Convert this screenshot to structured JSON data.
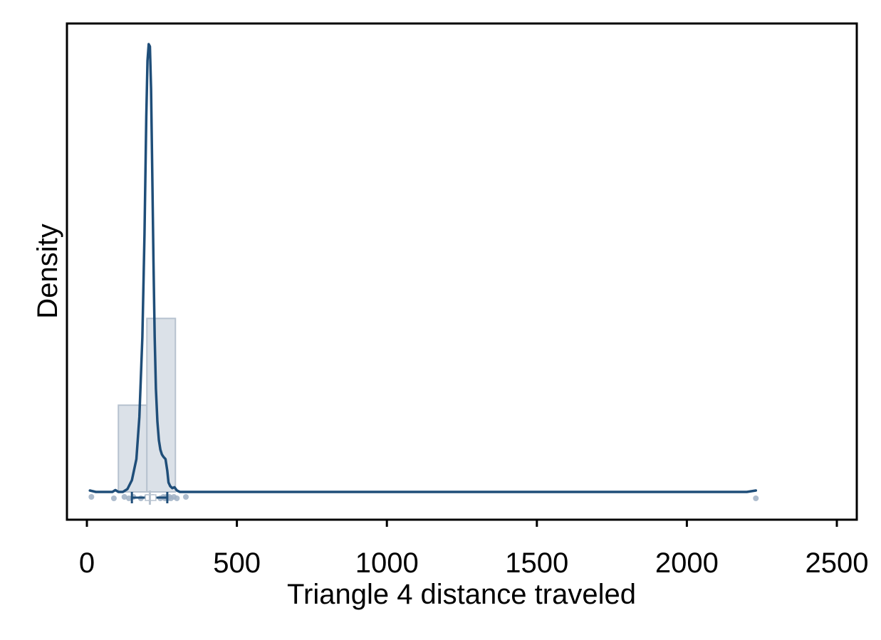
{
  "chart_data": {
    "type": "histogram+density",
    "title": "",
    "xlabel": "Triangle 4 distance traveled",
    "ylabel": "Density",
    "xlim": [
      -70,
      2560
    ],
    "ylim": [
      0,
      1
    ],
    "x_ticks": [
      0,
      500,
      1000,
      1500,
      2000,
      2500
    ],
    "x_tick_labels": [
      "0",
      "500",
      "1000",
      "1500",
      "2000",
      "2500"
    ],
    "y_ticks_shown": false,
    "grid": false,
    "legend": "none",
    "colors": {
      "line": "#1f4e79",
      "histogram_fill": "#dbe1e8",
      "histogram_edge": "#b7c2cf",
      "points": "#9fb0c4",
      "frame": "#000000"
    },
    "histogram": {
      "bins": [
        {
          "x0": 105,
          "x1": 200,
          "density": 0.185
        },
        {
          "x0": 200,
          "x1": 295,
          "density": 0.37
        }
      ]
    },
    "density_curve": {
      "x": [
        10,
        30,
        50,
        70,
        85,
        95,
        105,
        120,
        135,
        150,
        165,
        175,
        185,
        192,
        198,
        202,
        206,
        210,
        214,
        218,
        222,
        226,
        230,
        235,
        240,
        245,
        250,
        255,
        262,
        268,
        272,
        278,
        285,
        292,
        300,
        310,
        330,
        400,
        800,
        1500,
        2200,
        2230
      ],
      "y": [
        0.003,
        0.0,
        0.0,
        0.0,
        0.0,
        0.004,
        0.0,
        0.0,
        0.006,
        0.025,
        0.07,
        0.16,
        0.33,
        0.55,
        0.8,
        0.92,
        0.955,
        0.95,
        0.86,
        0.68,
        0.49,
        0.33,
        0.22,
        0.15,
        0.11,
        0.09,
        0.08,
        0.075,
        0.07,
        0.045,
        0.02,
        0.012,
        0.008,
        0.01,
        0.003,
        0.0,
        0.0,
        0.0,
        0.0,
        0.0,
        0.0,
        0.003
      ]
    },
    "rug_points_x": [
      15,
      90,
      125,
      140,
      155,
      180,
      200,
      210,
      220,
      245,
      255,
      260,
      265,
      270,
      275,
      280,
      290,
      300,
      330,
      2230
    ],
    "boxplot": {
      "whisker_low": 150,
      "q1": 195,
      "median": 210,
      "q3": 230,
      "whisker_high": 268
    }
  }
}
